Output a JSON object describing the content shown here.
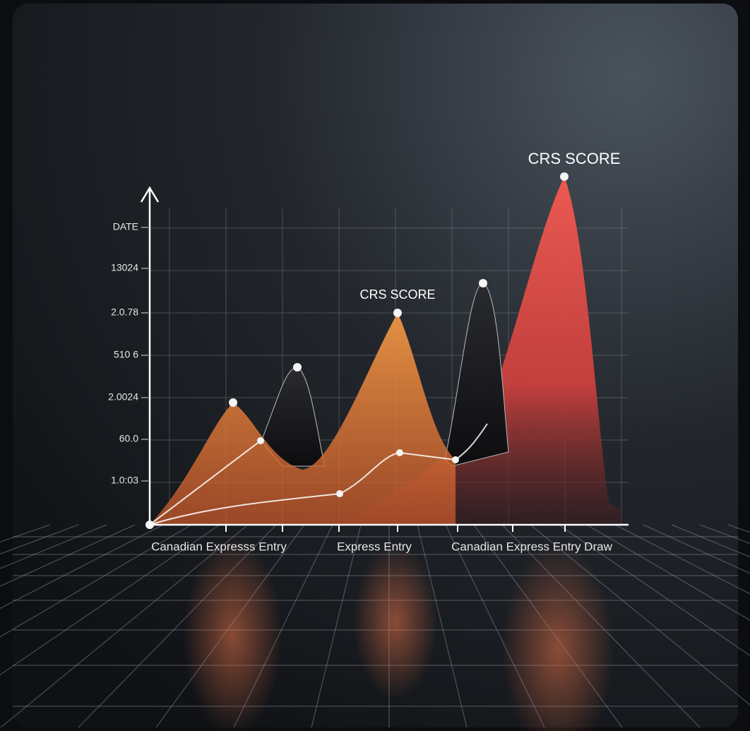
{
  "y_axis_labels": [
    "DATE",
    "13024",
    "2.0.78",
    "510 6",
    "2.0024",
    "60.0",
    "1.0:03"
  ],
  "x_axis_labels": [
    "Canadian Expresss Entry",
    "Express Entry",
    "Canadian Express Entry Draw"
  ],
  "annotations": [
    "CRS SCORE",
    "CRS SCORE"
  ]
}
